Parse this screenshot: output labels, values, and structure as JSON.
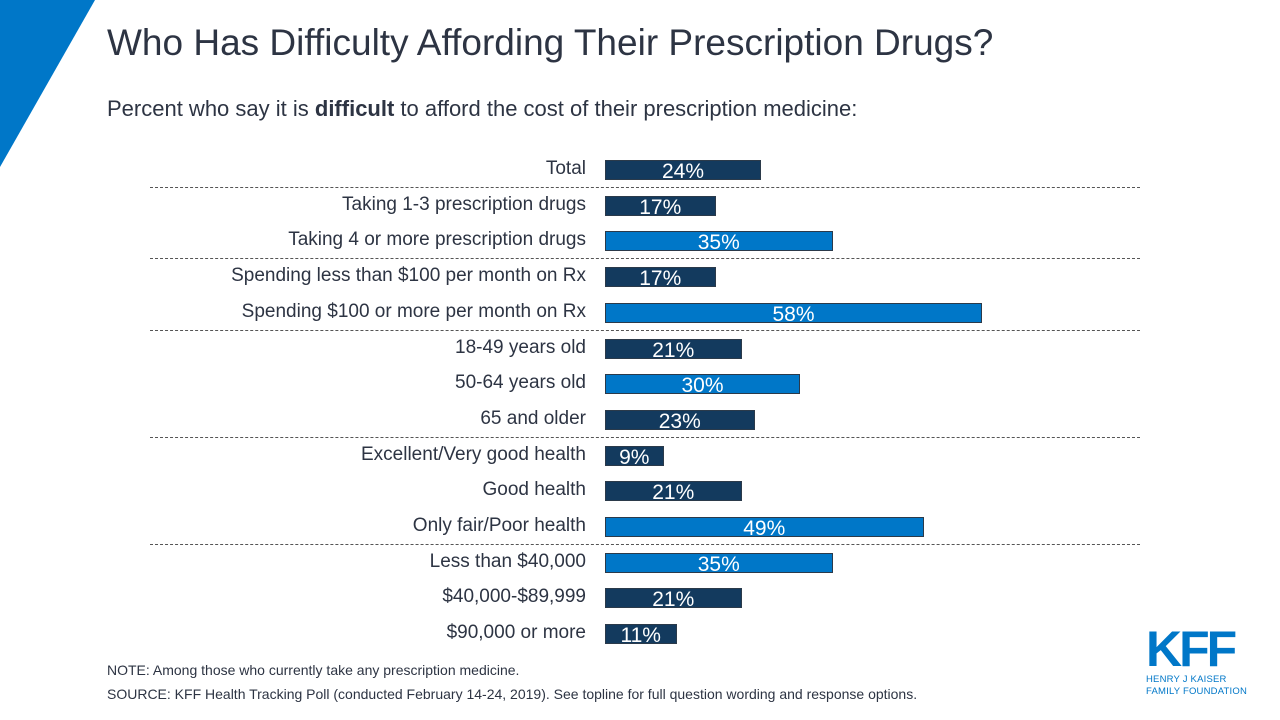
{
  "title": "Who Has Difficulty Affording Their Prescription Drugs?",
  "subtitle": {
    "before": "Percent who say it is ",
    "bold": "difficult",
    "after": " to afford the cost of their prescription medicine:"
  },
  "colors": {
    "dark": "#133a5e",
    "light": "#0077c8",
    "accent_triangle": "#0077c8"
  },
  "chart_data": {
    "type": "bar",
    "orientation": "horizontal",
    "categories": [
      "Total",
      "Taking 1-3 prescription drugs",
      "Taking 4 or more prescription drugs",
      "Spending less than $100 per month on Rx",
      "Spending $100 or more per month on Rx",
      "18-49 years old",
      "50-64 years old",
      "65 and older",
      "Excellent/Very good health",
      "Good health",
      "Only fair/Poor health",
      "Less than $40,000",
      "$40,000-$89,999",
      "$90,000 or more"
    ],
    "values": [
      24,
      17,
      35,
      17,
      58,
      21,
      30,
      23,
      9,
      21,
      49,
      35,
      21,
      11
    ],
    "data_labels": [
      "24%",
      "17%",
      "35%",
      "17%",
      "58%",
      "21%",
      "30%",
      "23%",
      "9%",
      "21%",
      "49%",
      "35%",
      "21%",
      "11%"
    ],
    "highlight": [
      false,
      false,
      true,
      false,
      true,
      false,
      true,
      false,
      false,
      false,
      true,
      true,
      false,
      false
    ],
    "group_dividers_after": [
      0,
      2,
      4,
      7,
      10
    ],
    "xlim": [
      0,
      100
    ],
    "grid": false,
    "legend": "none"
  },
  "footer": {
    "note": "NOTE: Among those who currently take any prescription medicine.",
    "source": "SOURCE: KFF Health Tracking Poll (conducted February 14-24, 2019). See topline for full question wording and response options."
  },
  "logo": {
    "mark": "KFF",
    "line1": "HENRY J KAISER",
    "line2": "FAMILY FOUNDATION"
  }
}
